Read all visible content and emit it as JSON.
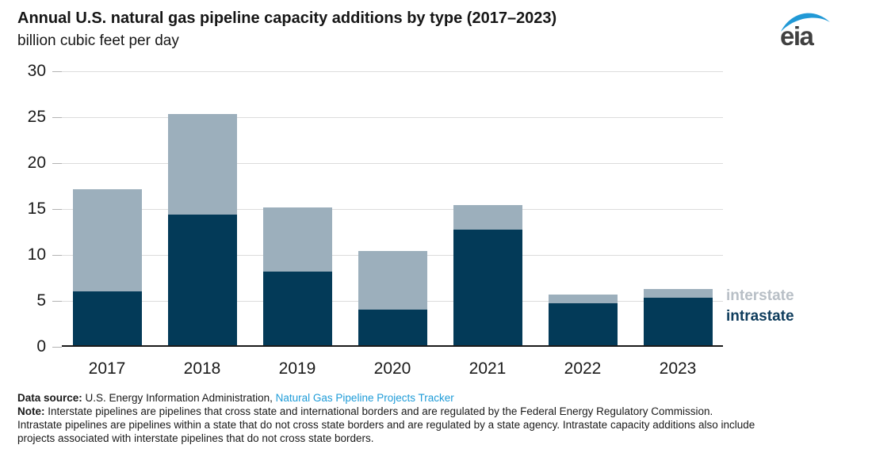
{
  "header": {
    "title": "Annual U.S. natural gas pipeline capacity additions by type (2017–2023)",
    "subtitle": "billion cubic feet per day",
    "logo_text": "eia"
  },
  "chart_data": {
    "type": "bar",
    "stacked": true,
    "title": "Annual U.S. natural gas pipeline capacity additions by type (2017–2023)",
    "xlabel": "",
    "ylabel": "billion cubic feet per day",
    "categories": [
      "2017",
      "2018",
      "2019",
      "2020",
      "2021",
      "2022",
      "2023"
    ],
    "series": [
      {
        "name": "intrastate",
        "color": "#033a58",
        "values": [
          5.9,
          14.2,
          8.0,
          3.9,
          12.6,
          4.6,
          5.2
        ]
      },
      {
        "name": "interstate",
        "color": "#9cafbc",
        "values": [
          11.1,
          11.0,
          7.0,
          6.4,
          2.7,
          0.9,
          0.9
        ]
      }
    ],
    "ylim": [
      0,
      30
    ],
    "yticks": [
      0,
      5,
      10,
      15,
      20,
      25,
      30
    ],
    "grid": true,
    "legend_position": "right"
  },
  "legend": {
    "items": [
      {
        "label": "interstate",
        "color": "#b8bfc6"
      },
      {
        "label": "intrastate",
        "color": "#0e3c5c"
      }
    ]
  },
  "footer": {
    "data_source_label": "Data source:",
    "data_source_text": " U.S. Energy Information Administration, ",
    "data_source_link": "Natural Gas Pipeline Projects Tracker",
    "note_label": "Note:",
    "note_line1": " Interstate pipelines are pipelines that cross state and international borders and are regulated by the Federal Energy Regulatory Commission.",
    "note_line2": "Intrastate pipelines are pipelines within a state that do not cross state borders and are regulated by a state agency. Intrastate capacity additions also include",
    "note_line3": "projects associated with interstate pipelines that do not cross state borders."
  },
  "colors": {
    "intrastate_bar": "#033a58",
    "interstate_bar": "#9cafbc",
    "link_blue": "#1f9cd8",
    "logo_blue": "#2199d6",
    "gridline": "#dcdcdc",
    "axis": "#1a1a1a"
  }
}
